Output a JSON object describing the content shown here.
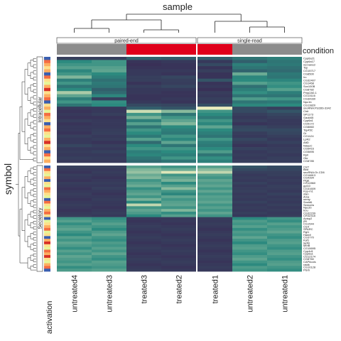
{
  "chart_data": {
    "type": "heatmap",
    "title": "sample",
    "ylabel": "symbol",
    "columns": [
      "untreated4",
      "untreated3",
      "treated3",
      "treated2",
      "treated1",
      "untreated2",
      "untreated1"
    ],
    "column_split": [
      {
        "label": "paired-end",
        "span": 4
      },
      {
        "label": "single-read",
        "span": 3
      }
    ],
    "condition_label": "condition",
    "condition_values": [
      "untreated",
      "untreated",
      "treated",
      "treated",
      "treated",
      "untreated",
      "untreated"
    ],
    "condition_colors": {
      "untreated": "#8c8c8c",
      "treated": "#e0001b"
    },
    "row_split": [
      "Intracellular",
      "Secretory"
    ],
    "row_annotation_label": "activation",
    "intracellular_symbols": [
      "Cyp6a21",
      "Cyp6a17",
      "nervana3",
      "Tsp",
      "CG15717",
      "CG8500",
      "Irc",
      "CG32407",
      "CG1468",
      "Sox100B",
      "CG8782",
      "Pmp2A0-1",
      "CG13116",
      "CG34330",
      "Npc1b",
      "CG13820",
      "snoRNA:Psi28S-3342",
      "Chit",
      "SP1173",
      "Gadd45",
      "Cyp6a1",
      "CG5172",
      "CG8860",
      "Tsp45C",
      "Gr",
      "CG1124",
      "LpR2",
      "AttD",
      "NdaeC",
      "CG5416",
      "CG5895",
      "Rpll",
      "Obr",
      "CG8785"
    ],
    "secretory_symbols": [
      "ClcT",
      "Bbd",
      "snoRNA:Or-CD6",
      "CG18813",
      "CG4394",
      "PlgE",
      "CG12860",
      "ppl10",
      "CG31609",
      "Ksp-m1",
      "stan",
      "Ama",
      "nemy",
      "Snoldlt",
      "Sema2a",
      "Npc2b",
      "bou",
      "CG32239",
      "CR32318",
      "Actsp2",
      "ple",
      "CG1544",
      "Clc4",
      "SPARC",
      "Rgl1",
      "Haddl",
      "CG3770",
      "Kaf1",
      "lactB",
      "MInB",
      "CG15695",
      "Cyp4d1",
      "Cyp6a1",
      "CG12174",
      "CG8760",
      "CAPitools",
      "ratdk",
      "CG10128",
      "Plsrb"
    ],
    "color_scale": {
      "low": "#3b1f4f",
      "mid": "#2c8a7f",
      "high": "#fff7c4"
    },
    "intracellular_values": [
      [
        0.15,
        0.15,
        0.32,
        0.28,
        0.3,
        0.4,
        0.45
      ],
      [
        0.5,
        0.55,
        0.1,
        0.12,
        0.12,
        0.3,
        0.4
      ],
      [
        0.55,
        0.55,
        0.08,
        0.1,
        0.2,
        0.45,
        0.42
      ],
      [
        0.6,
        0.6,
        0.1,
        0.1,
        0.1,
        0.4,
        0.38
      ],
      [
        0.48,
        0.62,
        0.12,
        0.12,
        0.15,
        0.32,
        0.35
      ],
      [
        0.55,
        0.5,
        0.12,
        0.1,
        0.1,
        0.65,
        0.42
      ],
      [
        0.7,
        0.45,
        0.15,
        0.18,
        0.1,
        0.48,
        0.4
      ],
      [
        0.45,
        0.38,
        0.15,
        0.15,
        0.25,
        0.5,
        0.48
      ],
      [
        0.55,
        0.42,
        0.1,
        0.14,
        0.1,
        0.6,
        0.55
      ],
      [
        0.4,
        0.4,
        0.15,
        0.18,
        0.12,
        0.38,
        0.52
      ],
      [
        0.5,
        0.3,
        0.12,
        0.12,
        0.08,
        0.45,
        0.6
      ],
      [
        0.8,
        0.35,
        0.12,
        0.1,
        0.14,
        0.52,
        0.45
      ],
      [
        0.62,
        0.48,
        0.1,
        0.1,
        0.12,
        0.4,
        0.4
      ],
      [
        0.45,
        0.15,
        0.1,
        0.12,
        0.15,
        0.58,
        0.55
      ],
      [
        0.55,
        0.52,
        0.12,
        0.1,
        0.12,
        0.4,
        0.42
      ],
      [
        0.4,
        0.5,
        0.2,
        0.18,
        0.22,
        0.48,
        0.5
      ],
      [
        0.12,
        0.12,
        0.3,
        0.25,
        0.95,
        0.2,
        0.15
      ],
      [
        0.1,
        0.12,
        0.88,
        0.72,
        0.55,
        0.2,
        0.25
      ],
      [
        0.12,
        0.15,
        0.55,
        0.4,
        0.5,
        0.15,
        0.18
      ],
      [
        0.1,
        0.1,
        0.68,
        0.55,
        0.42,
        0.12,
        0.15
      ],
      [
        0.14,
        0.12,
        0.45,
        0.62,
        0.55,
        0.15,
        0.12
      ],
      [
        0.1,
        0.12,
        0.6,
        0.7,
        0.48,
        0.1,
        0.12
      ],
      [
        0.12,
        0.12,
        0.4,
        0.5,
        0.62,
        0.18,
        0.15
      ],
      [
        0.12,
        0.14,
        0.55,
        0.45,
        0.5,
        0.2,
        0.2
      ],
      [
        0.1,
        0.15,
        0.5,
        0.42,
        0.45,
        0.14,
        0.18
      ],
      [
        0.15,
        0.12,
        0.42,
        0.55,
        0.4,
        0.12,
        0.15
      ],
      [
        0.12,
        0.14,
        0.6,
        0.48,
        0.55,
        0.18,
        0.12
      ],
      [
        0.12,
        0.1,
        0.35,
        0.62,
        0.45,
        0.14,
        0.16
      ],
      [
        0.18,
        0.15,
        0.5,
        0.4,
        0.42,
        0.1,
        0.12
      ],
      [
        0.12,
        0.12,
        0.55,
        0.55,
        0.5,
        0.16,
        0.14
      ],
      [
        0.14,
        0.16,
        0.45,
        0.5,
        0.58,
        0.12,
        0.15
      ],
      [
        0.12,
        0.12,
        0.48,
        0.45,
        0.4,
        0.14,
        0.12
      ],
      [
        0.15,
        0.14,
        0.4,
        0.55,
        0.52,
        0.12,
        0.15
      ],
      [
        0.12,
        0.12,
        0.35,
        0.4,
        0.45,
        0.15,
        0.14
      ]
    ],
    "secretory_values": [
      [
        0.15,
        0.15,
        0.6,
        0.55,
        0.6,
        0.25,
        0.2
      ],
      [
        0.12,
        0.12,
        0.7,
        0.65,
        0.72,
        0.2,
        0.18
      ],
      [
        0.1,
        0.14,
        0.75,
        0.92,
        0.85,
        0.15,
        0.15
      ],
      [
        0.14,
        0.12,
        0.65,
        0.55,
        0.6,
        0.12,
        0.15
      ],
      [
        0.12,
        0.1,
        0.7,
        0.62,
        0.55,
        0.14,
        0.12
      ],
      [
        0.1,
        0.12,
        0.55,
        0.68,
        0.62,
        0.12,
        0.14
      ],
      [
        0.14,
        0.14,
        0.6,
        0.5,
        0.58,
        0.16,
        0.12
      ],
      [
        0.12,
        0.12,
        0.65,
        0.6,
        0.62,
        0.12,
        0.15
      ],
      [
        0.1,
        0.15,
        0.52,
        0.72,
        0.55,
        0.14,
        0.14
      ],
      [
        0.12,
        0.12,
        0.58,
        0.55,
        0.62,
        0.15,
        0.12
      ],
      [
        0.14,
        0.1,
        0.62,
        0.48,
        0.55,
        0.12,
        0.16
      ],
      [
        0.12,
        0.12,
        0.55,
        0.62,
        0.6,
        0.14,
        0.12
      ],
      [
        0.1,
        0.14,
        0.68,
        0.55,
        0.58,
        0.12,
        0.14
      ],
      [
        0.12,
        0.12,
        0.5,
        0.6,
        0.62,
        0.16,
        0.12
      ],
      [
        0.14,
        0.12,
        0.85,
        0.62,
        0.55,
        0.12,
        0.15
      ],
      [
        0.12,
        0.1,
        0.55,
        0.55,
        0.6,
        0.14,
        0.12
      ],
      [
        0.1,
        0.12,
        0.62,
        0.7,
        0.55,
        0.12,
        0.14
      ],
      [
        0.12,
        0.14,
        0.58,
        0.52,
        0.62,
        0.15,
        0.12
      ],
      [
        0.14,
        0.12,
        0.5,
        0.6,
        0.55,
        0.12,
        0.14
      ],
      [
        0.55,
        0.52,
        0.12,
        0.12,
        0.14,
        0.5,
        0.55
      ],
      [
        0.6,
        0.55,
        0.1,
        0.12,
        0.12,
        0.58,
        0.52
      ],
      [
        0.52,
        0.6,
        0.12,
        0.1,
        0.14,
        0.55,
        0.6
      ],
      [
        0.58,
        0.55,
        0.14,
        0.12,
        0.12,
        0.6,
        0.55
      ],
      [
        0.62,
        0.5,
        0.12,
        0.14,
        0.1,
        0.52,
        0.58
      ],
      [
        0.55,
        0.58,
        0.1,
        0.12,
        0.12,
        0.58,
        0.62
      ],
      [
        0.5,
        0.62,
        0.12,
        0.1,
        0.14,
        0.55,
        0.55
      ],
      [
        0.6,
        0.55,
        0.14,
        0.12,
        0.12,
        0.62,
        0.52
      ],
      [
        0.55,
        0.52,
        0.12,
        0.14,
        0.1,
        0.55,
        0.58
      ],
      [
        0.62,
        0.58,
        0.1,
        0.12,
        0.12,
        0.5,
        0.6
      ],
      [
        0.58,
        0.55,
        0.12,
        0.1,
        0.14,
        0.58,
        0.55
      ],
      [
        0.52,
        0.6,
        0.14,
        0.12,
        0.12,
        0.6,
        0.52
      ],
      [
        0.6,
        0.55,
        0.12,
        0.14,
        0.1,
        0.55,
        0.58
      ],
      [
        0.55,
        0.62,
        0.1,
        0.12,
        0.12,
        0.52,
        0.6
      ],
      [
        0.62,
        0.55,
        0.12,
        0.1,
        0.14,
        0.58,
        0.55
      ],
      [
        0.58,
        0.52,
        0.14,
        0.12,
        0.12,
        0.62,
        0.52
      ],
      [
        0.55,
        0.6,
        0.12,
        0.14,
        0.1,
        0.55,
        0.58
      ],
      [
        0.6,
        0.58,
        0.1,
        0.12,
        0.12,
        0.5,
        0.6
      ],
      [
        0.52,
        0.55,
        0.12,
        0.1,
        0.14,
        0.58,
        0.55
      ],
      [
        0.58,
        0.6,
        0.14,
        0.12,
        0.12,
        0.55,
        0.52
      ]
    ],
    "intracellular_activation": [
      "#3a5fb0",
      "#f46d43",
      "#fdae61",
      "#fee08b",
      "#fdae61",
      "#3a5fb0",
      "#f46d43",
      "#fee08b",
      "#e6f598",
      "#fdae61",
      "#d73027",
      "#fee08b",
      "#fdae61",
      "#f46d43",
      "#3a5fb0",
      "#fee08b",
      "#fdae61",
      "#e6f598",
      "#f46d43",
      "#fdae61",
      "#fee08b",
      "#3a5fb0",
      "#fdae61",
      "#f46d43",
      "#fee08b",
      "#e6f598",
      "#fdae61",
      "#d73027",
      "#fee08b",
      "#fdae61",
      "#3a5fb0",
      "#f46d43",
      "#fee08b",
      "#fdae61"
    ],
    "secretory_activation": [
      "#3a5fb0",
      "#f46d43",
      "#fee08b",
      "#e6f598",
      "#fdae61",
      "#3a5fb0",
      "#fee08b",
      "#e6f598",
      "#f46d43",
      "#fdae61",
      "#fee08b",
      "#e6f598",
      "#3a5fb0",
      "#f46d43",
      "#fee08b",
      "#e6f598",
      "#fdae61",
      "#f46d43",
      "#fee08b",
      "#3a5fb0",
      "#e6f598",
      "#fee08b",
      "#fdae61",
      "#f46d43",
      "#e6f598",
      "#fee08b",
      "#3a5fb0",
      "#fdae61",
      "#d73027",
      "#fee08b",
      "#e6f598",
      "#f46d43",
      "#fdae61",
      "#d73027",
      "#fee08b",
      "#e6f598",
      "#fdae61",
      "#f46d43",
      "#3a5fb0"
    ]
  }
}
